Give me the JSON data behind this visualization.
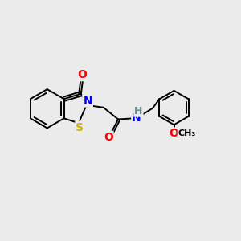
{
  "bg_color": "#ebebeb",
  "atom_colors": {
    "C": "#000000",
    "N": "#0000ff",
    "O": "#ff0000",
    "S": "#ccb800",
    "H": "#5f8f8f"
  },
  "bond_color": "#000000",
  "bond_width": 1.4,
  "figsize": [
    3.0,
    3.0
  ],
  "dpi": 100,
  "xlim": [
    0,
    10
  ],
  "ylim": [
    0,
    10
  ]
}
